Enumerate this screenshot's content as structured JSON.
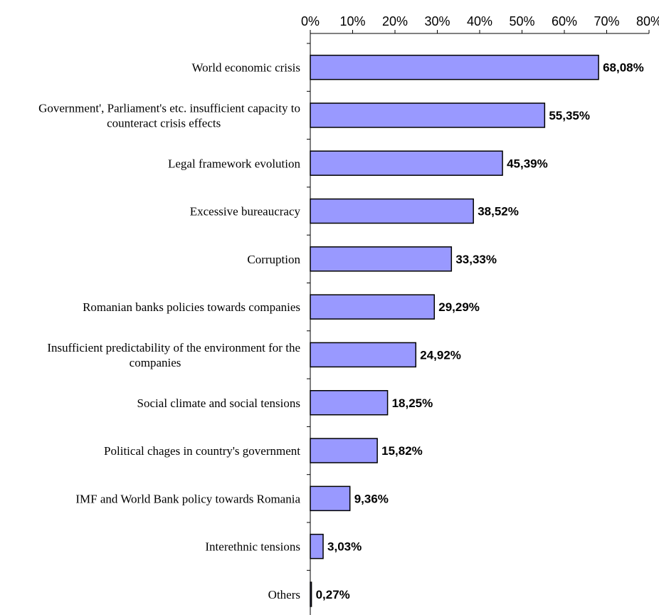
{
  "chart_data": {
    "type": "bar",
    "orientation": "horizontal",
    "categories": [
      [
        "World economic crisis"
      ],
      [
        "Government', Parliament's etc. insufficient capacity to",
        "counteract crisis effects"
      ],
      [
        "Legal framework evolution"
      ],
      [
        "Excessive bureaucracy"
      ],
      [
        "Corruption"
      ],
      [
        "Romanian banks policies towards companies"
      ],
      [
        "Insufficient predictability of the environment for the",
        "companies"
      ],
      [
        "Social climate and social tensions"
      ],
      [
        "Political chages in country's government"
      ],
      [
        "IMF and World Bank policy towards Romania"
      ],
      [
        "Interethnic tensions"
      ],
      [
        "Others"
      ]
    ],
    "values": [
      68.08,
      55.35,
      45.39,
      38.52,
      33.33,
      29.29,
      24.92,
      18.25,
      15.82,
      9.36,
      3.03,
      0.27
    ],
    "value_labels": [
      "68,08%",
      "55,35%",
      "45,39%",
      "38,52%",
      "33,33%",
      "29,29%",
      "24,92%",
      "18,25%",
      "15,82%",
      "9,36%",
      "3,03%",
      "0,27%"
    ],
    "x_ticks": [
      0,
      10,
      20,
      30,
      40,
      50,
      60,
      70,
      80
    ],
    "x_tick_labels": [
      "0%",
      "10%",
      "20%",
      "30%",
      "40%",
      "50%",
      "60%",
      "70%",
      "80%"
    ],
    "xlim": [
      0,
      80
    ],
    "x_axis_position": "top",
    "grid": false,
    "bar_color": "#9999ff",
    "bar_edge_color": "#000000"
  }
}
